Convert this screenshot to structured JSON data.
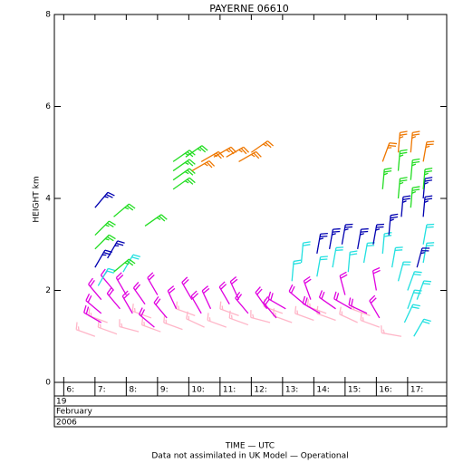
{
  "chart_data": {
    "type": "wind-barb",
    "title": "PAYERNE 06610",
    "y_label": "HEIGHT km",
    "x_label": "TIME — UTC",
    "footnote": "Data not assimilated in UK Model — Operational",
    "date_rows": [
      "19",
      "February",
      "2006"
    ],
    "xlim": [
      5.7,
      18.25
    ],
    "xticks": [
      {
        "value": 6,
        "label": "6:"
      },
      {
        "value": 7,
        "label": "7:"
      },
      {
        "value": 8,
        "label": "8:"
      },
      {
        "value": 9,
        "label": "9:"
      },
      {
        "value": 10,
        "label": "10:"
      },
      {
        "value": 11,
        "label": "11:"
      },
      {
        "value": 12,
        "label": "12:"
      },
      {
        "value": 13,
        "label": "13:"
      },
      {
        "value": 14,
        "label": "14:"
      },
      {
        "value": 15,
        "label": "15:"
      },
      {
        "value": 16,
        "label": "16:"
      },
      {
        "value": 17,
        "label": "17:"
      }
    ],
    "ylim": [
      0,
      8
    ],
    "yticks": [
      0,
      2,
      4,
      6,
      8
    ],
    "series": [
      {
        "color": "#ffb6c8",
        "x": [
          7.0,
          7.7,
          8.4,
          9.1,
          9.8,
          10.5,
          11.2,
          11.9,
          12.6,
          13.3,
          14.0,
          14.7,
          15.4,
          16.1,
          16.8,
          7.4,
          8.8,
          10.2,
          11.6,
          13.0,
          14.4,
          15.8
        ],
        "values": [
          1.0,
          1.05,
          1.1,
          1.1,
          1.15,
          1.2,
          1.2,
          1.25,
          1.3,
          1.3,
          1.35,
          1.35,
          1.3,
          1.2,
          1.0,
          1.3,
          1.4,
          1.45,
          1.45,
          1.5,
          1.5,
          1.45
        ],
        "direction": [
          290,
          290,
          285,
          290,
          290,
          295,
          290,
          290,
          285,
          290,
          290,
          290,
          295,
          290,
          280,
          290,
          290,
          290,
          290,
          290,
          290,
          290
        ],
        "speed": [
          15,
          15,
          15,
          15,
          15,
          15,
          15,
          15,
          15,
          15,
          15,
          15,
          15,
          15,
          15,
          15,
          15,
          15,
          15,
          15,
          15,
          15
        ]
      },
      {
        "color": "#e000e0",
        "x": [
          7.2,
          7.2,
          7.2,
          7.8,
          8.2,
          8.6,
          9.0,
          9.6,
          10.1,
          10.7,
          11.3,
          11.9,
          12.5,
          13.1,
          13.7,
          14.2,
          14.7,
          15.2,
          15.7,
          16.1,
          8.0,
          9.3,
          10.4,
          11.6,
          12.8,
          13.9,
          15.0,
          16.0,
          7.6,
          8.9
        ],
        "values": [
          1.3,
          1.5,
          1.8,
          1.6,
          1.5,
          1.7,
          1.9,
          1.6,
          1.8,
          1.6,
          1.7,
          1.5,
          1.6,
          1.6,
          1.7,
          1.5,
          1.6,
          1.6,
          1.5,
          1.4,
          1.9,
          1.4,
          1.5,
          1.8,
          1.4,
          1.8,
          1.9,
          2.0,
          2.0,
          1.2
        ],
        "direction": [
          300,
          310,
          320,
          320,
          330,
          325,
          330,
          335,
          330,
          335,
          330,
          320,
          325,
          300,
          310,
          300,
          305,
          300,
          295,
          330,
          330,
          320,
          330,
          335,
          320,
          340,
          345,
          350,
          320,
          310
        ],
        "speed": [
          20,
          20,
          20,
          20,
          20,
          20,
          20,
          20,
          20,
          20,
          20,
          20,
          20,
          20,
          20,
          20,
          20,
          20,
          20,
          20,
          20,
          20,
          20,
          20,
          20,
          20,
          20,
          20,
          20,
          20
        ]
      },
      {
        "color": "#22e0e0",
        "x": [
          7.1,
          7.9,
          13.3,
          13.6,
          14.1,
          14.6,
          15.1,
          15.6,
          16.2,
          16.5,
          16.7,
          17.0,
          17.0,
          17.3,
          17.5,
          17.5,
          16.9,
          17.2
        ],
        "values": [
          2.1,
          2.4,
          2.2,
          2.6,
          2.3,
          2.5,
          2.4,
          2.6,
          2.8,
          2.5,
          2.2,
          2.0,
          1.6,
          1.8,
          2.6,
          3.0,
          1.3,
          1.0
        ],
        "direction": [
          30,
          30,
          5,
          5,
          10,
          10,
          5,
          10,
          5,
          10,
          15,
          20,
          20,
          20,
          10,
          10,
          25,
          30
        ],
        "speed": [
          20,
          20,
          20,
          20,
          20,
          20,
          20,
          20,
          20,
          20,
          20,
          20,
          20,
          20,
          20,
          20,
          20,
          20
        ]
      },
      {
        "color": "#0000b0",
        "x": [
          7.0,
          7.0,
          7.4,
          14.1,
          14.5,
          14.9,
          15.4,
          15.9,
          16.4,
          16.8,
          17.3,
          17.5,
          17.5
        ],
        "values": [
          3.8,
          2.5,
          2.7,
          2.8,
          2.9,
          3.0,
          2.9,
          3.0,
          3.2,
          3.6,
          2.5,
          3.6,
          4.0
        ],
        "direction": [
          40,
          30,
          30,
          10,
          10,
          10,
          10,
          10,
          5,
          5,
          15,
          5,
          5
        ],
        "speed": [
          25,
          25,
          25,
          25,
          25,
          25,
          25,
          25,
          25,
          25,
          25,
          25,
          25
        ]
      },
      {
        "color": "#22dd22",
        "x": [
          7.0,
          7.0,
          7.6,
          7.6,
          8.6,
          9.5,
          9.5,
          9.5,
          9.5,
          9.9,
          16.2,
          16.7,
          16.7,
          17.1,
          17.1,
          17.5
        ],
        "values": [
          2.9,
          3.2,
          2.4,
          3.6,
          3.4,
          4.2,
          4.4,
          4.6,
          4.8,
          4.9,
          4.2,
          4.0,
          4.6,
          3.8,
          4.4,
          4.2
        ],
        "direction": [
          45,
          45,
          50,
          50,
          55,
          55,
          55,
          55,
          55,
          55,
          5,
          5,
          5,
          5,
          5,
          5
        ],
        "speed": [
          25,
          25,
          25,
          25,
          25,
          25,
          25,
          25,
          25,
          25,
          25,
          25,
          25,
          25,
          25,
          25
        ]
      },
      {
        "color": "#ee7700",
        "x": [
          10.1,
          10.4,
          10.8,
          11.2,
          11.6,
          12.0,
          16.2,
          16.7,
          17.1,
          17.5
        ],
        "values": [
          4.6,
          4.8,
          4.9,
          4.9,
          4.8,
          5.0,
          4.8,
          5.0,
          5.0,
          4.8
        ],
        "direction": [
          60,
          60,
          60,
          60,
          60,
          55,
          20,
          5,
          5,
          10
        ],
        "speed": [
          25,
          25,
          25,
          25,
          25,
          25,
          25,
          25,
          25,
          25
        ]
      }
    ]
  }
}
